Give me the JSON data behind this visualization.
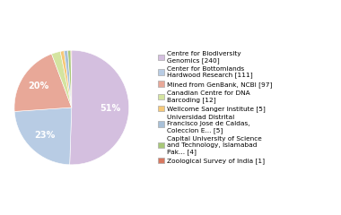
{
  "labels": [
    "Centre for Biodiversity\nGenomics [240]",
    "Center for Bottomlands\nHardwood Research [111]",
    "Mined from GenBank, NCBI [97]",
    "Canadian Centre for DNA\nBarcoding [12]",
    "Wellcome Sanger Institute [5]",
    "Universidad Distrital\nFrancisco Jose de Caldas,\nColeccion E... [5]",
    "Capital University of Science\nand Technology, Islamabad\nPak... [4]",
    "Zoological Survey of India [1]"
  ],
  "values": [
    240,
    111,
    97,
    12,
    5,
    5,
    4,
    1
  ],
  "colors": [
    "#d4bfdf",
    "#b8cce4",
    "#e8a898",
    "#d4e4a0",
    "#f5c878",
    "#a8c0d8",
    "#a8c878",
    "#d87860"
  ],
  "legend_labels": [
    "Centre for Biodiversity\nGenomics [240]",
    "Center for Bottomlands\nHardwood Research [111]",
    "Mined from GenBank, NCBI [97]",
    "Canadian Centre for DNA\nBarcoding [12]",
    "Wellcome Sanger Institute [5]",
    "Universidad Distrital\nFrancisco Jose de Caldas,\nColeccion E... [5]",
    "Capital University of Science\nand Technology, Islamabad\nPak... [4]",
    "Zoological Survey of India [1]"
  ],
  "startangle": 90,
  "figsize": [
    3.8,
    2.4
  ],
  "dpi": 100,
  "bg_color": "#ffffff"
}
